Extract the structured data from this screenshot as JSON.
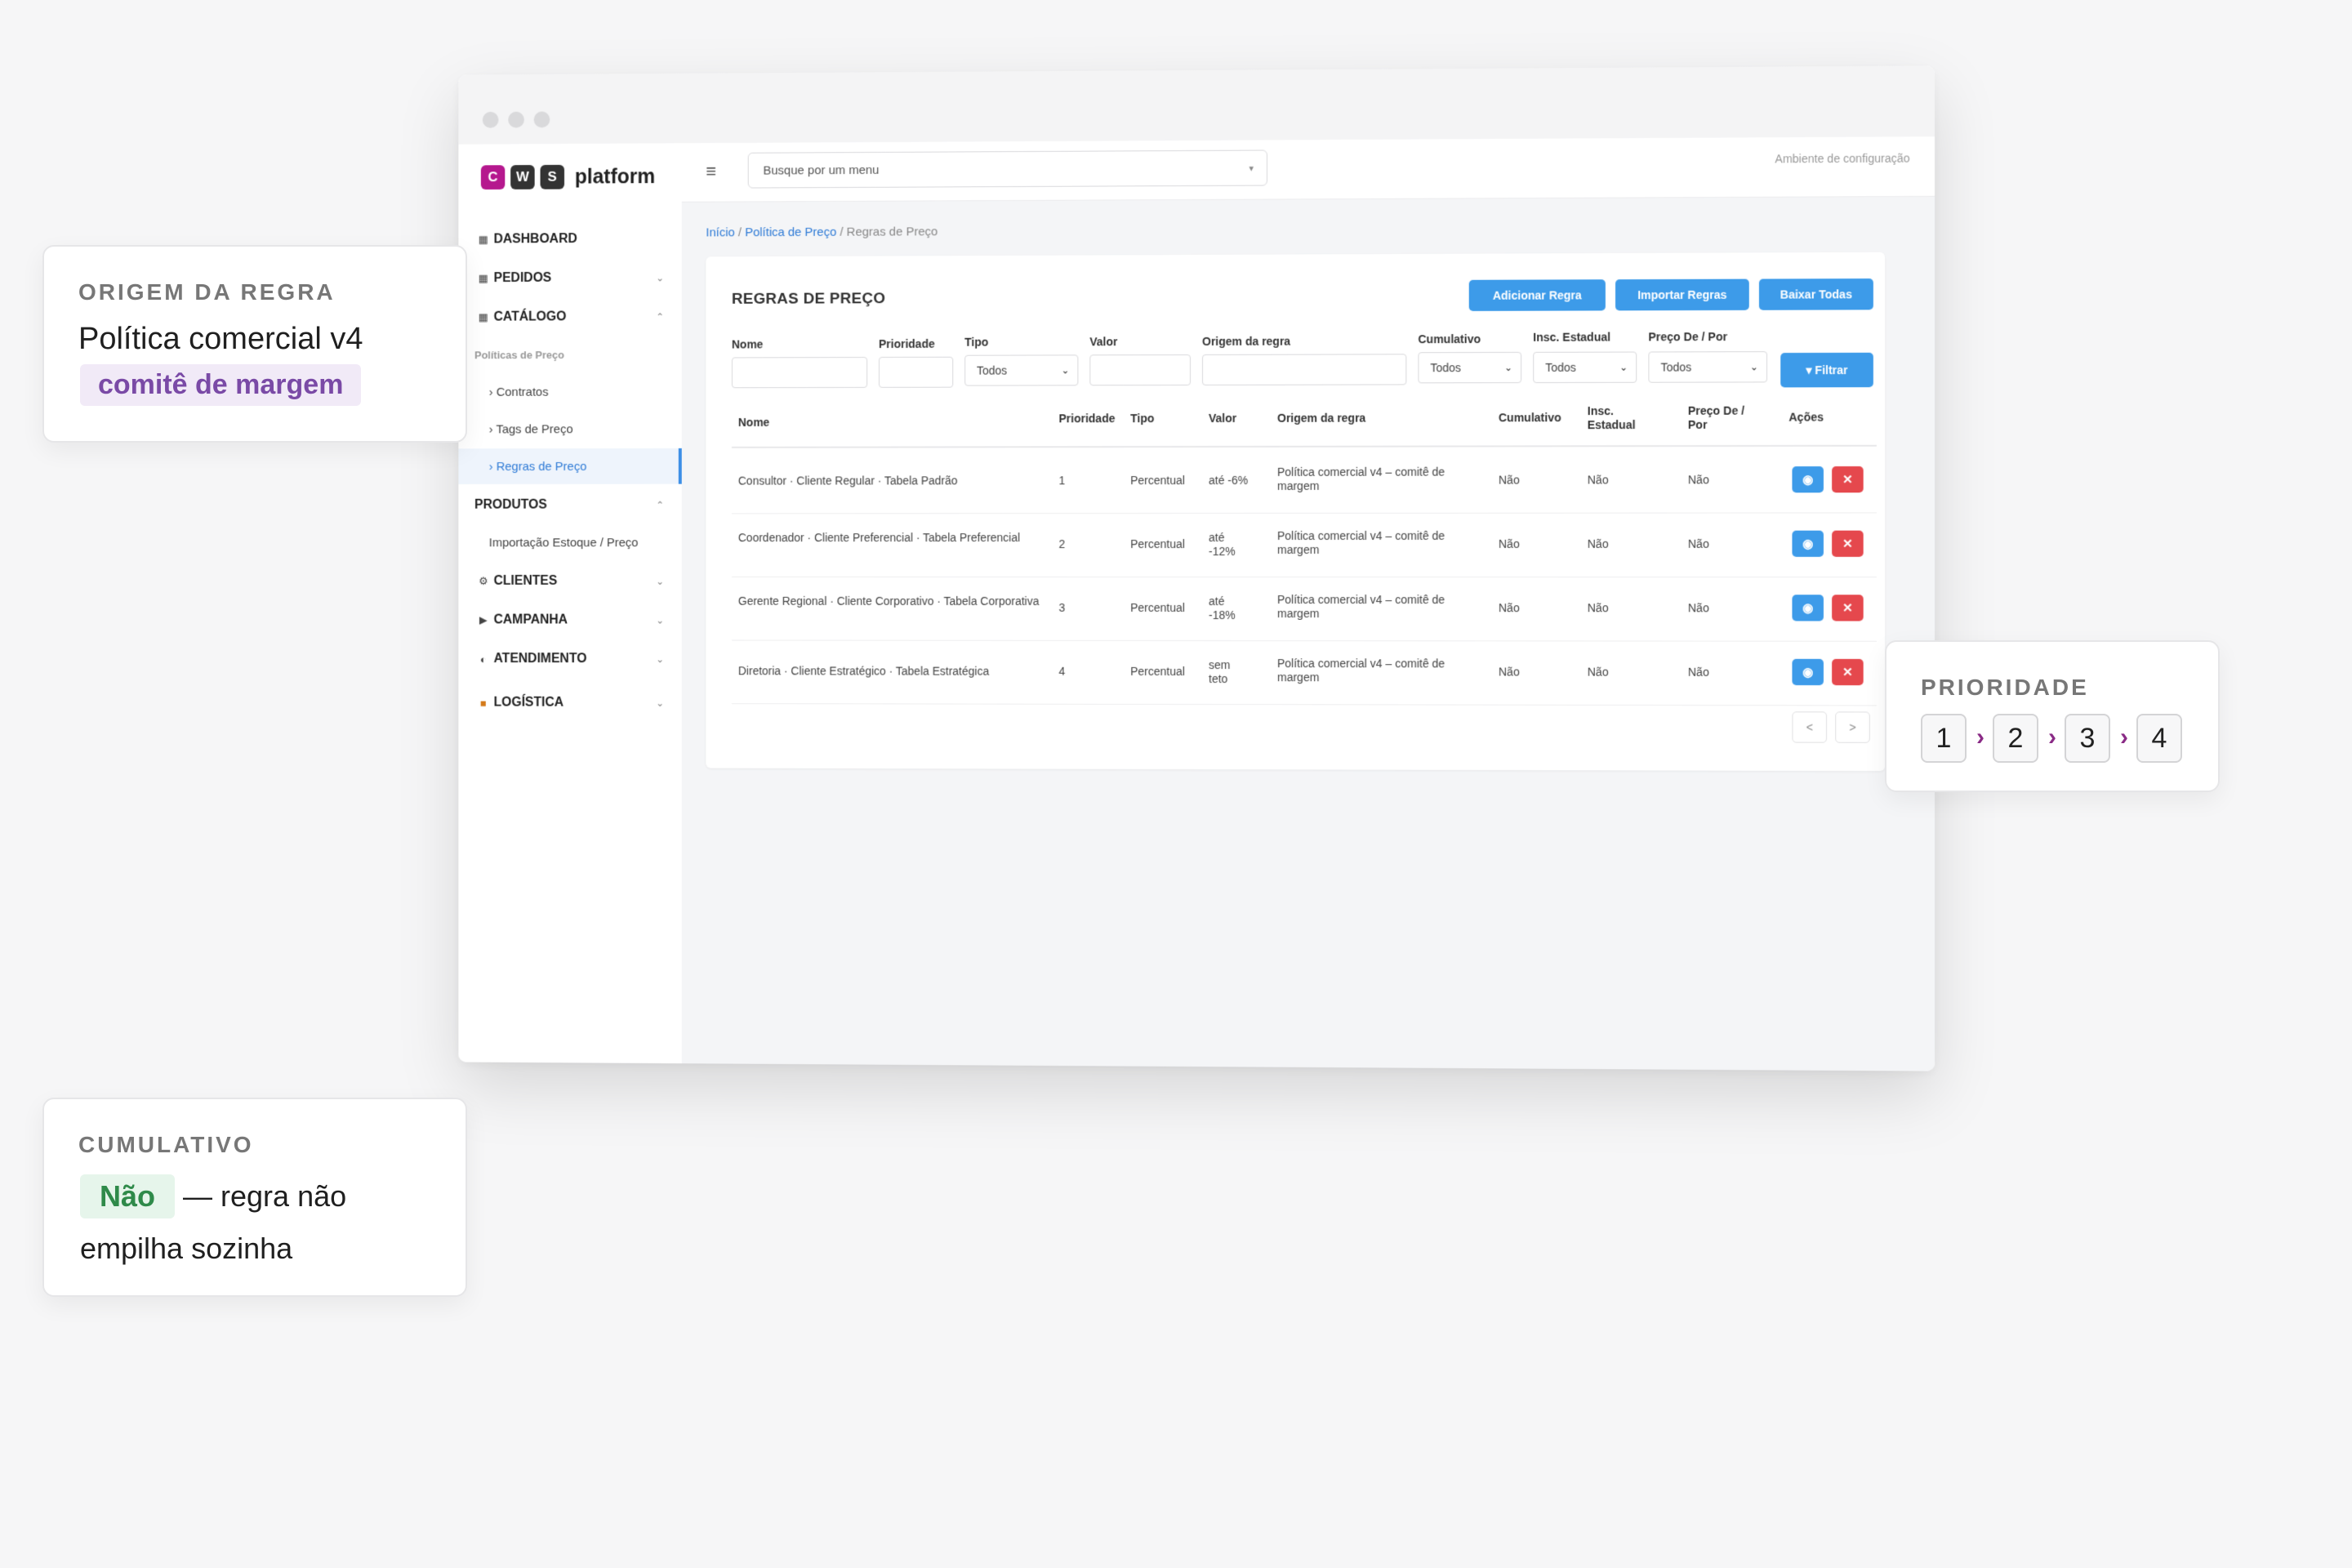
{
  "brand": {
    "letters": [
      "C",
      "W",
      "S"
    ],
    "letter_colors": [
      "#b5188e",
      "#333333",
      "#333333"
    ],
    "word": "platform"
  },
  "sidebar": {
    "dashboard": {
      "label": "DASHBOARD",
      "icon": "grid-icon"
    },
    "pedidos": {
      "label": "PEDIDOS",
      "icon": "grid-icon"
    },
    "catalogo": {
      "label": "CATÁLOGO",
      "icon": "grid-icon"
    },
    "section_label": "Políticas de Preço",
    "sub_items": [
      "› Contratos",
      "› Tags de Preço",
      "› Regras de Preço"
    ],
    "produtos": {
      "label": "PRODUTOS"
    },
    "produtos_sub": "Importação Estoque / Preço",
    "clientes": {
      "label": "CLIENTES",
      "icon": "gear-icon"
    },
    "campanha": {
      "label": "CAMPANHA",
      "icon": "play-icon"
    },
    "atendimento": {
      "label": "ATENDIMENTO",
      "icon": "half-moon-icon"
    },
    "logistica": {
      "label": "LOGÍSTICA",
      "icon": "truck-icon"
    }
  },
  "topbar": {
    "search_placeholder": "Busque por um menu",
    "environment": "Ambiente de configuração"
  },
  "breadcrumb": {
    "home": "Início",
    "sep": " / ",
    "policy": "Política de Preço",
    "current": "Regras de Preço"
  },
  "card": {
    "title": "REGRAS DE PREÇO",
    "buttons": {
      "add": "Adicionar Regra",
      "import": "Importar Regras",
      "download": "Baixar Todas"
    },
    "filters": {
      "nome": "Nome",
      "prioridade": "Prioridade",
      "tipo": "Tipo",
      "valor": "Valor",
      "origem": "Origem da regra",
      "cumulativo": "Cumulativo",
      "insc": "Insc. Estadual",
      "preco": "Preço De / Por",
      "all_option": "Todos",
      "filter_button": "▾ Filtrar"
    },
    "table": {
      "headers": {
        "nome": "Nome",
        "prioridade": "Prioridade",
        "tipo": "Tipo",
        "valor": "Valor",
        "origem": "Origem da regra",
        "cumulativo": "Cumulativo",
        "insc": "Insc. Estadual",
        "preco": "Preço De / Por",
        "acoes": "Ações"
      },
      "rows": [
        {
          "nome": "Consultor · Cliente Regular · Tabela Padrão",
          "prioridade": "1",
          "tipo": "Percentual",
          "valor": "até -6%",
          "origem": "Política comercial v4 – comitê de margem",
          "cumulativo": "Não",
          "insc": "Não",
          "preco": "Não"
        },
        {
          "nome": "Coordenador · Cliente Preferencial · Tabela Preferencial",
          "prioridade": "2",
          "tipo": "Percentual",
          "valor": "até -12%",
          "origem": "Política comercial v4 – comitê de margem",
          "cumulativo": "Não",
          "insc": "Não",
          "preco": "Não"
        },
        {
          "nome": "Gerente Regional · Cliente Corporativo · Tabela Corporativa",
          "prioridade": "3",
          "tipo": "Percentual",
          "valor": "até -18%",
          "origem": "Política comercial v4 – comitê de margem",
          "cumulativo": "Não",
          "insc": "Não",
          "preco": "Não"
        },
        {
          "nome": "Diretoria · Cliente Estratégico · Tabela Estratégica",
          "prioridade": "4",
          "tipo": "Percentual",
          "valor": "sem teto",
          "origem": "Política comercial v4 – comitê de margem",
          "cumulativo": "Não",
          "insc": "Não",
          "preco": "Não"
        }
      ],
      "action_view_icon": "eye-icon",
      "action_delete_label": "✕"
    },
    "pagination": {
      "prev": "<",
      "next": ">"
    }
  },
  "callouts": {
    "origem": {
      "caption": "ORIGEM DA REGRA",
      "line1": "Política comercial v4",
      "highlight": "comitê de margem"
    },
    "cumulativo": {
      "caption": "CUMULATIVO",
      "highlight": "Não",
      "text1": " — regra não",
      "text2": "empilha sozinha"
    },
    "prioridade": {
      "caption": "PRIORIDADE",
      "steps": [
        "1",
        "2",
        "3",
        "4"
      ],
      "arrow": "›"
    }
  },
  "colors": {
    "accent_blue": "#3d9be9",
    "danger_red": "#e5484d",
    "highlight_purple": "#7a4aa6",
    "highlight_green": "#2f8a4a"
  }
}
